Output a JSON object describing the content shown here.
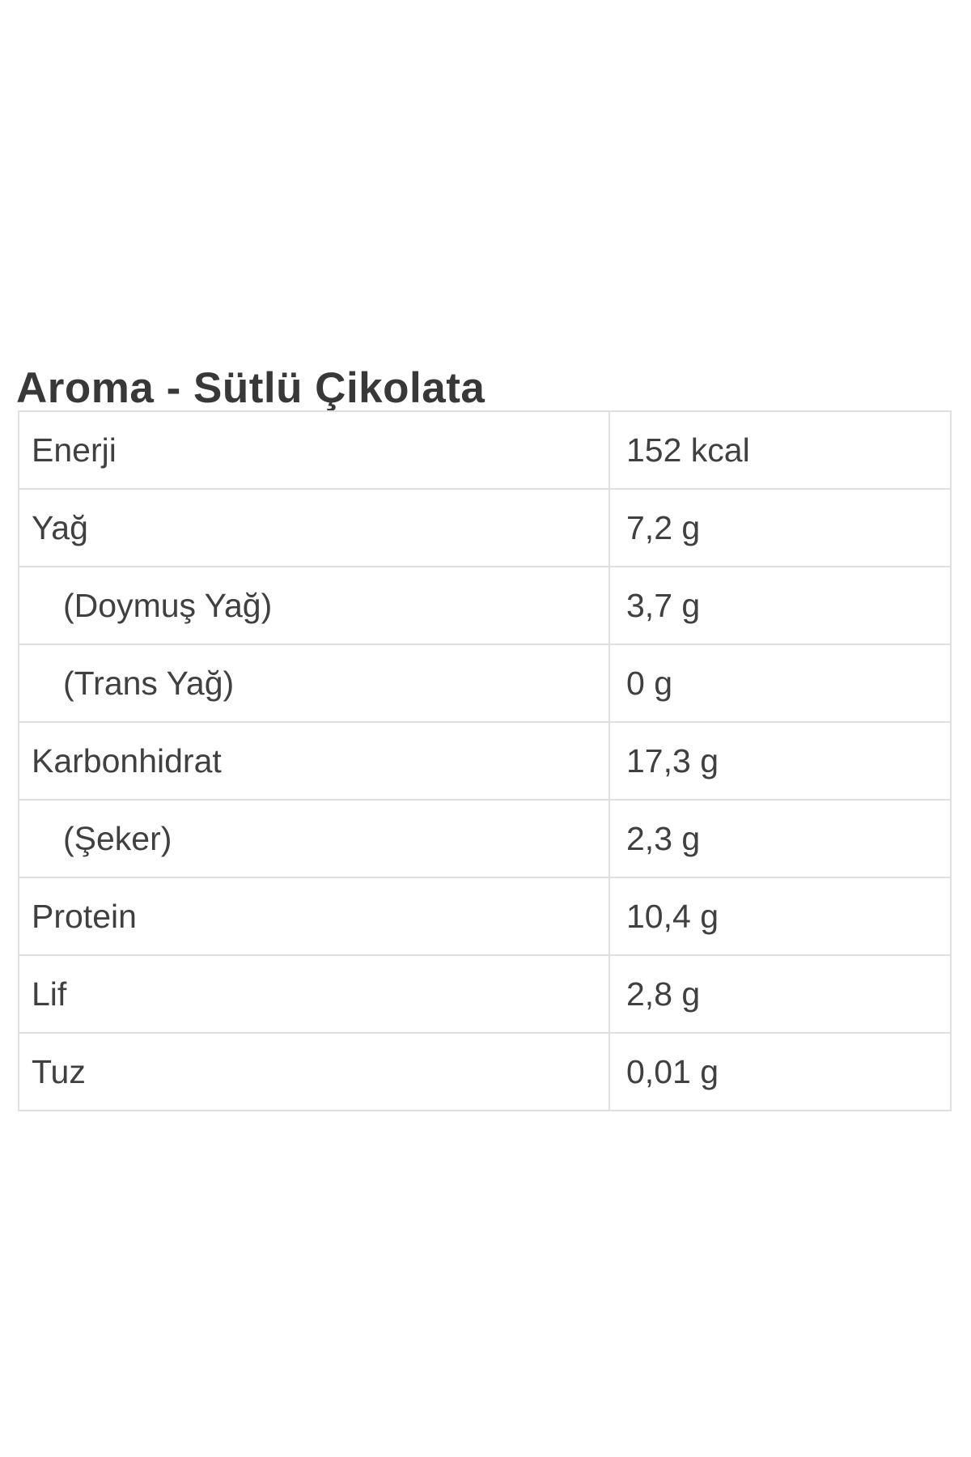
{
  "page": {
    "background_color": "#ffffff",
    "title": "Aroma - Sütlü Çikolata"
  },
  "colors": {
    "title_text": "#383838",
    "cell_text": "#404040",
    "table_border": "#e0e0e0"
  },
  "table": {
    "columns": [
      "nutrient",
      "amount"
    ],
    "rows": [
      {
        "label": "Enerji",
        "value": "152 kcal",
        "indent": false
      },
      {
        "label": "Yağ",
        "value": "7,2 g",
        "indent": false
      },
      {
        "label": "(Doymuş Yağ)",
        "value": "3,7 g",
        "indent": true
      },
      {
        "label": "(Trans Yağ)",
        "value": "0 g",
        "indent": true
      },
      {
        "label": "Karbonhidrat",
        "value": "17,3 g",
        "indent": false
      },
      {
        "label": "(Şeker)",
        "value": "2,3 g",
        "indent": true
      },
      {
        "label": "Protein",
        "value": "10,4 g",
        "indent": false
      },
      {
        "label": "Lif",
        "value": "2,8 g",
        "indent": false
      },
      {
        "label": "Tuz",
        "value": "0,01 g",
        "indent": false
      }
    ]
  }
}
